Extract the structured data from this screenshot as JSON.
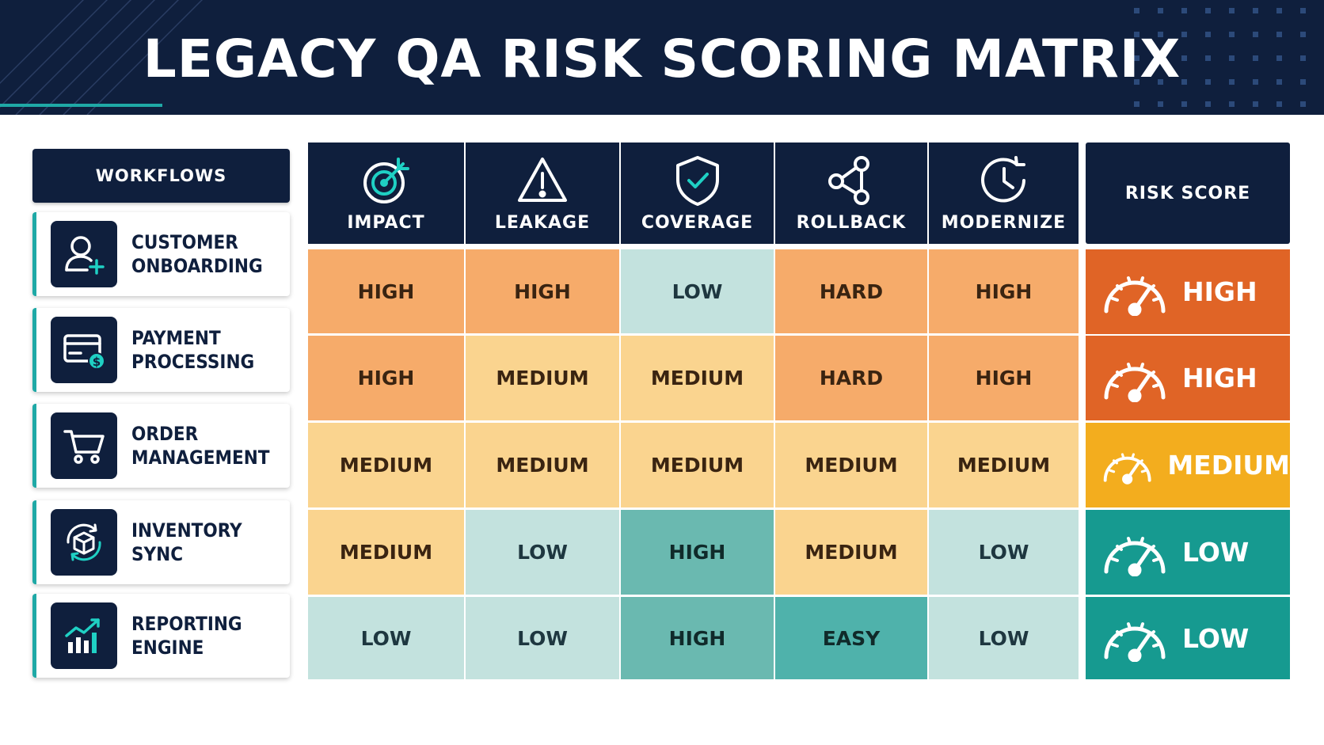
{
  "title": "LEGACY QA RISK SCORING MATRIX",
  "colors": {
    "navy": "#0f1f3d",
    "teal_accent": "#1fa9a6",
    "cell_high": "#f6ab6a",
    "cell_medium": "#fad48f",
    "cell_low": "#c3e2de",
    "cell_high_coverage": "#6ab9b0",
    "cell_easy": "#4fb2ab",
    "score_high": "#e06426",
    "score_medium": "#f3ad1e",
    "score_low": "#169a90"
  },
  "workflows": {
    "header": "WORKFLOWS",
    "items": [
      {
        "line1": "CUSTOMER",
        "line2": "ONBOARDING",
        "icon": "user-add-icon"
      },
      {
        "line1": "PAYMENT",
        "line2": "PROCESSING",
        "icon": "credit-card-dollar-icon"
      },
      {
        "line1": "ORDER",
        "line2": "MANAGEMENT",
        "icon": "shopping-cart-icon"
      },
      {
        "line1": "INVENTORY",
        "line2": "SYNC",
        "icon": "cube-sync-icon"
      },
      {
        "line1": "REPORTING",
        "line2": "ENGINE",
        "icon": "bar-chart-trend-icon"
      }
    ]
  },
  "columns": [
    {
      "label": "IMPACT",
      "icon": "target-icon"
    },
    {
      "label": "LEAKAGE",
      "icon": "warning-triangle-icon"
    },
    {
      "label": "COVERAGE",
      "icon": "shield-check-icon"
    },
    {
      "label": "ROLLBACK",
      "icon": "share-nodes-icon"
    },
    {
      "label": "MODERNIZE",
      "icon": "clock-refresh-icon"
    }
  ],
  "risk_score_header": "RISK SCORE",
  "rows": [
    {
      "cells": [
        "HIGH",
        "HIGH",
        "LOW",
        "HARD",
        "HIGH"
      ],
      "score": "HIGH"
    },
    {
      "cells": [
        "HIGH",
        "MEDIUM",
        "MEDIUM",
        "HARD",
        "HIGH"
      ],
      "score": "HIGH"
    },
    {
      "cells": [
        "MEDIUM",
        "MEDIUM",
        "MEDIUM",
        "MEDIUM",
        "MEDIUM"
      ],
      "score": "MEDIUM"
    },
    {
      "cells": [
        "MEDIUM",
        "LOW",
        "HIGH",
        "MEDIUM",
        "LOW"
      ],
      "score": "LOW"
    },
    {
      "cells": [
        "LOW",
        "LOW",
        "HIGH",
        "EASY",
        "LOW"
      ],
      "score": "LOW"
    }
  ]
}
